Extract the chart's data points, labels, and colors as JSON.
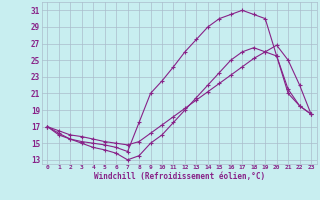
{
  "xlabel": "Windchill (Refroidissement éolien,°C)",
  "bg_color": "#c8eef0",
  "grid_color": "#aabccc",
  "line_color": "#882288",
  "xlim_min": -0.5,
  "xlim_max": 23.5,
  "ylim_min": 12.5,
  "ylim_max": 32,
  "xticks": [
    0,
    1,
    2,
    3,
    4,
    5,
    6,
    7,
    8,
    9,
    10,
    11,
    12,
    13,
    14,
    15,
    16,
    17,
    18,
    19,
    20,
    21,
    22,
    23
  ],
  "yticks": [
    13,
    15,
    17,
    19,
    21,
    23,
    25,
    27,
    29,
    31
  ],
  "line_top_x": [
    0,
    1,
    2,
    3,
    4,
    5,
    6,
    7,
    8,
    9,
    10,
    11,
    12,
    13,
    14,
    15,
    16,
    17,
    18,
    19,
    20,
    21,
    22,
    23
  ],
  "line_top_y": [
    17,
    16.2,
    15.5,
    15.2,
    15,
    14.8,
    14.5,
    14,
    17.5,
    21,
    22.5,
    24.2,
    26,
    27.5,
    29,
    30,
    30.5,
    31,
    30.5,
    30,
    25.5,
    21.5,
    19.5,
    18.5
  ],
  "line_mid_x": [
    0,
    1,
    2,
    3,
    4,
    5,
    6,
    7,
    8,
    9,
    10,
    11,
    12,
    13,
    14,
    15,
    16,
    17,
    18,
    19,
    20,
    21,
    22,
    23
  ],
  "line_mid_y": [
    17,
    16.5,
    16,
    15.8,
    15.5,
    15.2,
    15,
    14.8,
    15.2,
    16.2,
    17.2,
    18.2,
    19.2,
    20.2,
    21.2,
    22.2,
    23.2,
    24.2,
    25.2,
    26,
    26.8,
    25,
    22,
    18.5
  ],
  "line_bot_x": [
    0,
    1,
    2,
    3,
    4,
    5,
    6,
    7,
    8,
    9,
    10,
    11,
    12,
    13,
    14,
    15,
    16,
    17,
    18,
    19,
    20,
    21,
    22,
    23
  ],
  "line_bot_y": [
    17,
    16,
    15.5,
    15,
    14.5,
    14.2,
    13.8,
    13,
    13.5,
    15,
    16,
    17.5,
    19,
    20.5,
    22,
    23.5,
    25,
    26,
    26.5,
    26,
    25.5,
    21,
    19.5,
    18.5
  ]
}
